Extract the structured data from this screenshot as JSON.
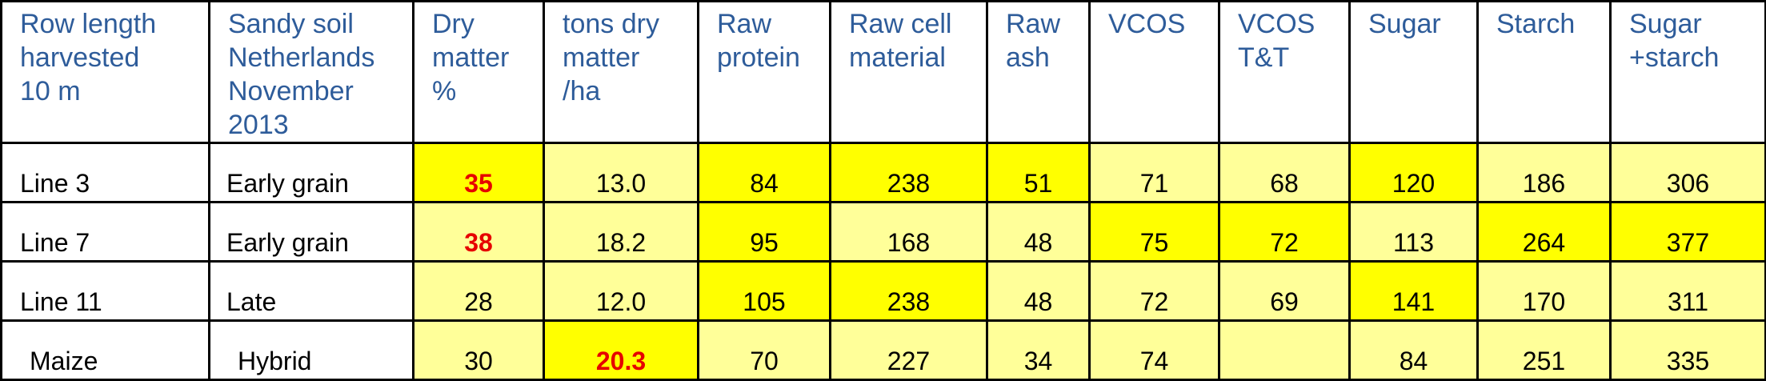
{
  "colors": {
    "header_text": "#2e5c9a",
    "yellow": "#ffff00",
    "light_yellow": "#ffff99",
    "highlight_text": "#e60000"
  },
  "table": {
    "headers": [
      "Row length\nharvested\n10 m",
      "Sandy soil\nNetherlands\nNovember\n2013",
      "Dry\nmatter\n%",
      "tons dry\nmatter\n/ha",
      "Raw\nprotein",
      "Raw cell\nmaterial",
      "Raw\nash",
      "VCOS",
      "VCOS\nT&T",
      "Sugar",
      "Starch",
      "Sugar\n+starch"
    ],
    "rows": [
      {
        "cells": [
          "Line 3",
          "Early grain",
          "35",
          "13.0",
          "84",
          "238",
          "51",
          "71",
          "68",
          "120",
          "186",
          "306"
        ]
      },
      {
        "cells": [
          "Line 7",
          "Early grain",
          "38",
          "18.2",
          "95",
          "168",
          "48",
          "75",
          "72",
          "113",
          "264",
          "377"
        ]
      },
      {
        "cells": [
          "Line 11",
          "Late",
          "28",
          "12.0",
          "105",
          "238",
          "48",
          "72",
          "69",
          "141",
          "170",
          "311"
        ]
      },
      {
        "cells": [
          "Maize",
          "Hybrid",
          "30",
          "20.3",
          "70",
          "227",
          "34",
          "74",
          "",
          "84",
          "251",
          "335"
        ]
      }
    ]
  }
}
